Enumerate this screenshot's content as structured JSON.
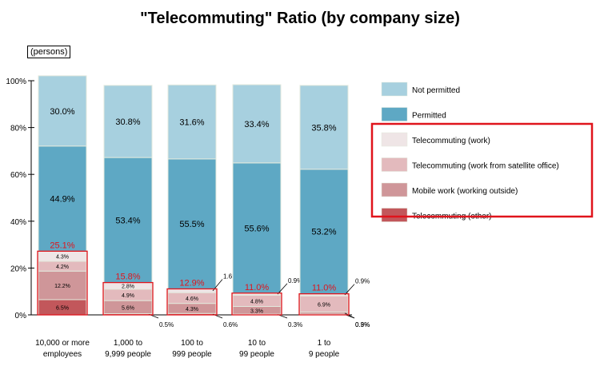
{
  "title": "\"Telecommuting\" Ratio (by company size)",
  "unit_label": "(persons)",
  "colors": {
    "not_permitted": "#a7d0df",
    "permitted": "#5ea8c4",
    "tc_1": "#efe5e6",
    "tc_2": "#e3babd",
    "tc_3": "#cf9699",
    "tc_4": "#c2575b",
    "highlight": "#e0141c",
    "bar_border": "#e3e9dd"
  },
  "chart_data": {
    "type": "bar",
    "stacked": true,
    "title": "\"Telecommuting\" Ratio (by company size)",
    "ylim": [
      0,
      100
    ],
    "yticks": [
      "0%",
      "20%",
      "40%",
      "60%",
      "80%",
      "100%"
    ],
    "categories": [
      [
        "10,000 or more",
        "employees"
      ],
      [
        "1,000 to",
        "9,999 people"
      ],
      [
        "100 to",
        "999 people"
      ],
      [
        "10 to",
        "99 people"
      ],
      [
        "1 to",
        "9 people"
      ]
    ],
    "legend": [
      {
        "label": "Not permitted",
        "color_key": "not_permitted",
        "boxed": false
      },
      {
        "label": "Permitted",
        "color_key": "permitted",
        "boxed": false
      },
      {
        "label": "Telecommuting (work)",
        "color_key": "tc_1",
        "boxed": true
      },
      {
        "label": "Telecommuting (work from satellite office)",
        "color_key": "tc_2",
        "boxed": true
      },
      {
        "label": "Mobile work (working outside)",
        "color_key": "tc_3",
        "boxed": true
      },
      {
        "label": "Telecommuting (other)",
        "color_key": "tc_4",
        "boxed": true
      }
    ],
    "series": [
      {
        "key": "tc_4",
        "values": [
          6.5,
          0.5,
          0.6,
          0.3,
          0.3
        ],
        "labels": [
          "6.5%",
          "0.5%",
          "0.6%",
          "0.3%",
          "0.3%"
        ]
      },
      {
        "key": "tc_3",
        "values": [
          12.2,
          5.6,
          4.3,
          3.3,
          0.9
        ],
        "labels": [
          "12.2%",
          "5.6%",
          "4.3%",
          "3.3%",
          "0.9%"
        ]
      },
      {
        "key": "tc_2",
        "values": [
          4.2,
          4.9,
          4.6,
          4.8,
          6.9
        ],
        "labels": [
          "4.2%",
          "4.9%",
          "4.6%",
          "4.8%",
          "6.9%"
        ]
      },
      {
        "key": "tc_1",
        "values": [
          4.3,
          2.8,
          1.6,
          0.9,
          0.9
        ],
        "labels": [
          "4.3%",
          "2.8%",
          "1.6%",
          "0.9%",
          "0.9%"
        ]
      },
      {
        "key": "permitted",
        "values": [
          44.9,
          53.4,
          55.5,
          55.6,
          53.2
        ],
        "labels": [
          "44.9%",
          "53.4%",
          "55.5%",
          "55.6%",
          "53.2%"
        ]
      },
      {
        "key": "not_permitted",
        "values": [
          30.0,
          30.8,
          31.6,
          33.4,
          35.8
        ],
        "labels": [
          "30.0%",
          "30.8%",
          "31.6%",
          "33.4%",
          "35.8%"
        ]
      }
    ],
    "telecommuting_totals": [
      "25.1%",
      "15.8%",
      "12.9%",
      "11.0%",
      "11.0%"
    ]
  }
}
